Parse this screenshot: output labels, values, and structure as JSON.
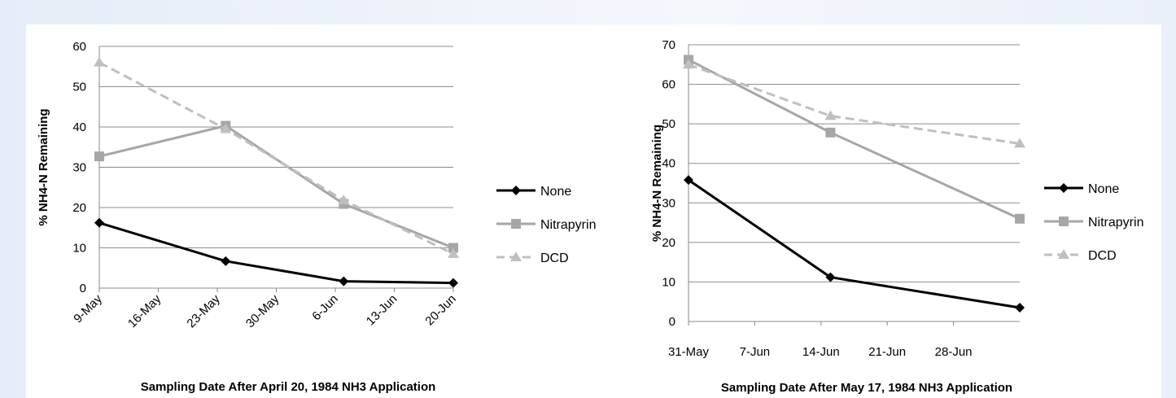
{
  "chart_data": [
    {
      "type": "line",
      "xlabel": "Sampling Date After April 20, 1984 NH3 Application",
      "ylabel": "% NH4-N Remaining",
      "ylim": [
        0,
        60
      ],
      "yticks": [
        0,
        10,
        20,
        30,
        40,
        50,
        60
      ],
      "xlim": [
        "9-May",
        "20-Jun"
      ],
      "xticks": [
        "9-May",
        "16-May",
        "23-May",
        "30-May",
        "6-Jun",
        "13-Jun",
        "20-Jun"
      ],
      "x_tick_rotation": "45°",
      "grid": "horizontal",
      "legend": "right",
      "series": [
        {
          "name": "None",
          "color": "#000000",
          "dash": "solid",
          "marker": "diamond",
          "x": [
            "9-May",
            "24-May",
            "7-Jun",
            "20-Jun"
          ],
          "y": [
            16.2,
            6.7,
            1.7,
            1.3
          ]
        },
        {
          "name": "Nitrapyrin",
          "color": "#a6a6a6",
          "dash": "solid",
          "marker": "square",
          "x": [
            "9-May",
            "24-May",
            "7-Jun",
            "20-Jun"
          ],
          "y": [
            32.7,
            40.3,
            20.9,
            10.0
          ]
        },
        {
          "name": "DCD",
          "color": "#bfbfbf",
          "dash": "dashed",
          "marker": "triangle",
          "x": [
            "9-May",
            "24-May",
            "7-Jun",
            "20-Jun"
          ],
          "y": [
            56.0,
            39.5,
            21.8,
            8.5
          ]
        }
      ]
    },
    {
      "type": "line",
      "xlabel": "Sampling Date After May 17, 1984 NH3 Application",
      "ylabel": "% NH4-N Remaining",
      "ylim": [
        0,
        70
      ],
      "yticks": [
        0,
        10,
        20,
        30,
        40,
        50,
        60,
        70
      ],
      "xlim": [
        "31-May",
        "5-Jul"
      ],
      "xticks": [
        "31-May",
        "7-Jun",
        "14-Jun",
        "21-Jun",
        "28-Jun"
      ],
      "x_tick_rotation": "0°",
      "grid": "horizontal",
      "legend": "right",
      "series": [
        {
          "name": "None",
          "color": "#000000",
          "dash": "solid",
          "marker": "diamond",
          "x": [
            "31-May",
            "15-Jun",
            "5-Jul"
          ],
          "y": [
            35.8,
            11.2,
            3.5
          ]
        },
        {
          "name": "Nitrapyrin",
          "color": "#a6a6a6",
          "dash": "solid",
          "marker": "square",
          "x": [
            "31-May",
            "15-Jun",
            "5-Jul"
          ],
          "y": [
            66.2,
            47.8,
            26.0
          ]
        },
        {
          "name": "DCD",
          "color": "#bfbfbf",
          "dash": "dashed",
          "marker": "triangle",
          "x": [
            "31-May",
            "15-Jun",
            "5-Jul"
          ],
          "y": [
            65.0,
            52.0,
            45.0
          ]
        }
      ]
    }
  ]
}
